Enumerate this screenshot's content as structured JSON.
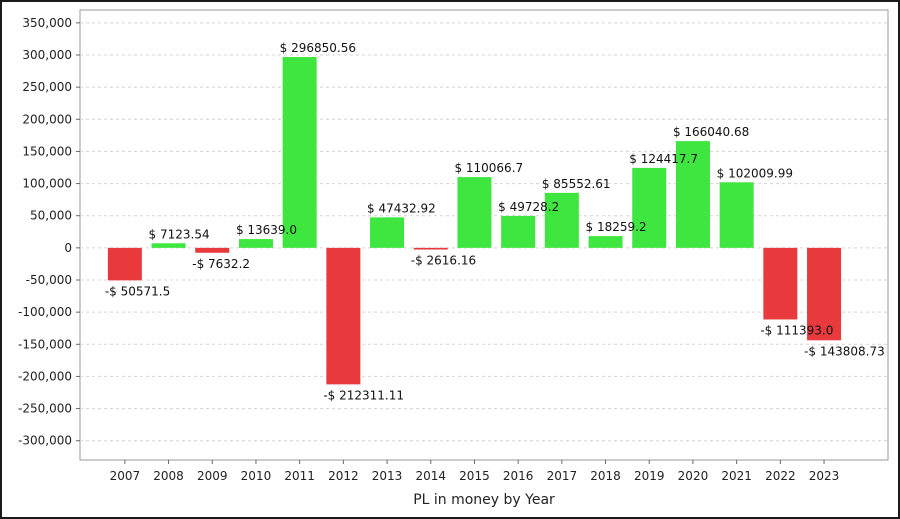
{
  "chart_data": {
    "type": "bar",
    "title": "",
    "xlabel": "PL in money by Year",
    "ylabel": "",
    "ylim": [
      -330000,
      370000
    ],
    "yticks": [
      350000,
      300000,
      250000,
      200000,
      150000,
      100000,
      50000,
      0,
      -50000,
      -100000,
      -150000,
      -200000,
      -250000,
      -300000
    ],
    "ytick_labels": [
      "350,000",
      "300,000",
      "250,000",
      "200,000",
      "150,000",
      "100,000",
      "50,000",
      "0",
      "-50,000",
      "-100,000",
      "-150,000",
      "-200,000",
      "-250,000",
      "-300,000"
    ],
    "grid": true,
    "legend": "none",
    "categories": [
      "2007",
      "2008",
      "2009",
      "2010",
      "2011",
      "2012",
      "2013",
      "2014",
      "2015",
      "2016",
      "2017",
      "2018",
      "2019",
      "2020",
      "2021",
      "2022",
      "2023"
    ],
    "values": [
      -50571.5,
      7123.54,
      -7632.2,
      13639.0,
      296850.56,
      -212311.11,
      47432.92,
      -2616.16,
      110066.7,
      49728.2,
      85552.61,
      18259.2,
      124417.7,
      166040.68,
      102009.99,
      -111393.0,
      -143808.73
    ],
    "data_labels": [
      "-$ 50571.5",
      "$ 7123.54",
      "-$ 7632.2",
      "$ 13639.0",
      "$ 296850.56",
      "-$ 212311.11",
      "$ 47432.92",
      "-$ 2616.16",
      "$ 110066.7",
      "$ 49728.2",
      "$ 85552.61",
      "$ 18259.2",
      "$ 124417.7",
      "$ 166040.68",
      "$ 102009.99",
      "-$ 111393.0",
      "-$ 143808.73"
    ],
    "colors": {
      "positive": "#3fe63f",
      "negative": "#e8393d"
    }
  }
}
